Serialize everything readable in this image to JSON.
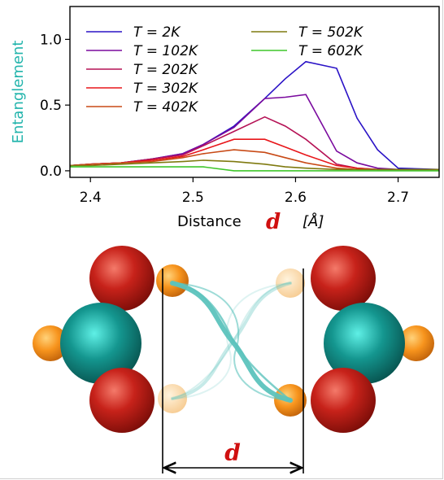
{
  "chart_data": {
    "type": "line",
    "xlabel": "Distance",
    "xlabel_symbol": "d",
    "xlabel_unit": "[Å]",
    "ylabel": "Entanglement",
    "xlim": [
      2.38,
      2.74
    ],
    "ylim": [
      -0.05,
      1.25
    ],
    "xticks": [
      2.4,
      2.5,
      2.6,
      2.7
    ],
    "xtick_labels": [
      "2.4",
      "2.5",
      "2.6",
      "2.7"
    ],
    "yticks": [
      0.0,
      0.5,
      1.0
    ],
    "ytick_labels": [
      "0.0",
      "0.5",
      "1.0"
    ],
    "grid": false,
    "legend": {
      "placement": "top",
      "columns": 2
    },
    "x": [
      2.38,
      2.4,
      2.43,
      2.46,
      2.49,
      2.51,
      2.54,
      2.57,
      2.59,
      2.61,
      2.64,
      2.66,
      2.68,
      2.7,
      2.74
    ],
    "series": [
      {
        "name": "T = 2K",
        "color": "#2a12c6",
        "values": [
          0.04,
          0.05,
          0.06,
          0.09,
          0.13,
          0.2,
          0.34,
          0.55,
          0.7,
          0.83,
          0.78,
          0.4,
          0.16,
          0.02,
          0.01
        ]
      },
      {
        "name": "T = 102K",
        "color": "#7a0a9e",
        "values": [
          0.04,
          0.05,
          0.06,
          0.09,
          0.13,
          0.2,
          0.33,
          0.55,
          0.56,
          0.58,
          0.15,
          0.06,
          0.02,
          0.01,
          0.01
        ]
      },
      {
        "name": "T = 202K",
        "color": "#b51255",
        "values": [
          0.04,
          0.05,
          0.06,
          0.09,
          0.12,
          0.19,
          0.3,
          0.41,
          0.34,
          0.24,
          0.05,
          0.02,
          0.01,
          0.01,
          0.01
        ]
      },
      {
        "name": "T = 302K",
        "color": "#e8161a",
        "values": [
          0.04,
          0.05,
          0.06,
          0.08,
          0.11,
          0.16,
          0.24,
          0.24,
          0.18,
          0.12,
          0.04,
          0.02,
          0.01,
          0.01,
          0.01
        ]
      },
      {
        "name": "T = 402K",
        "color": "#c84a16",
        "values": [
          0.04,
          0.05,
          0.06,
          0.07,
          0.1,
          0.13,
          0.16,
          0.14,
          0.1,
          0.06,
          0.02,
          0.01,
          0.01,
          0.01,
          0.01
        ]
      },
      {
        "name": "T = 502K",
        "color": "#7f7a10",
        "values": [
          0.04,
          0.04,
          0.05,
          0.06,
          0.07,
          0.08,
          0.07,
          0.05,
          0.03,
          0.02,
          0.01,
          0.01,
          0.01,
          0.01,
          0.01
        ]
      },
      {
        "name": "T = 602K",
        "color": "#3ec62a",
        "values": [
          0.03,
          0.03,
          0.03,
          0.03,
          0.03,
          0.03,
          0.0,
          0.0,
          0.0,
          0.0,
          0.0,
          0.0,
          0.0,
          0.0,
          0.0
        ]
      }
    ],
    "colors": {
      "ylabel": "#22b4ac",
      "symbol": "#d01010"
    }
  },
  "diagram": {
    "distance_label": "d",
    "colors": {
      "oxygen": "#c7221a",
      "metal": "#138f89",
      "small_atom": "#f7941d",
      "bond": "#5cc3bd",
      "label": "#d01010"
    }
  }
}
